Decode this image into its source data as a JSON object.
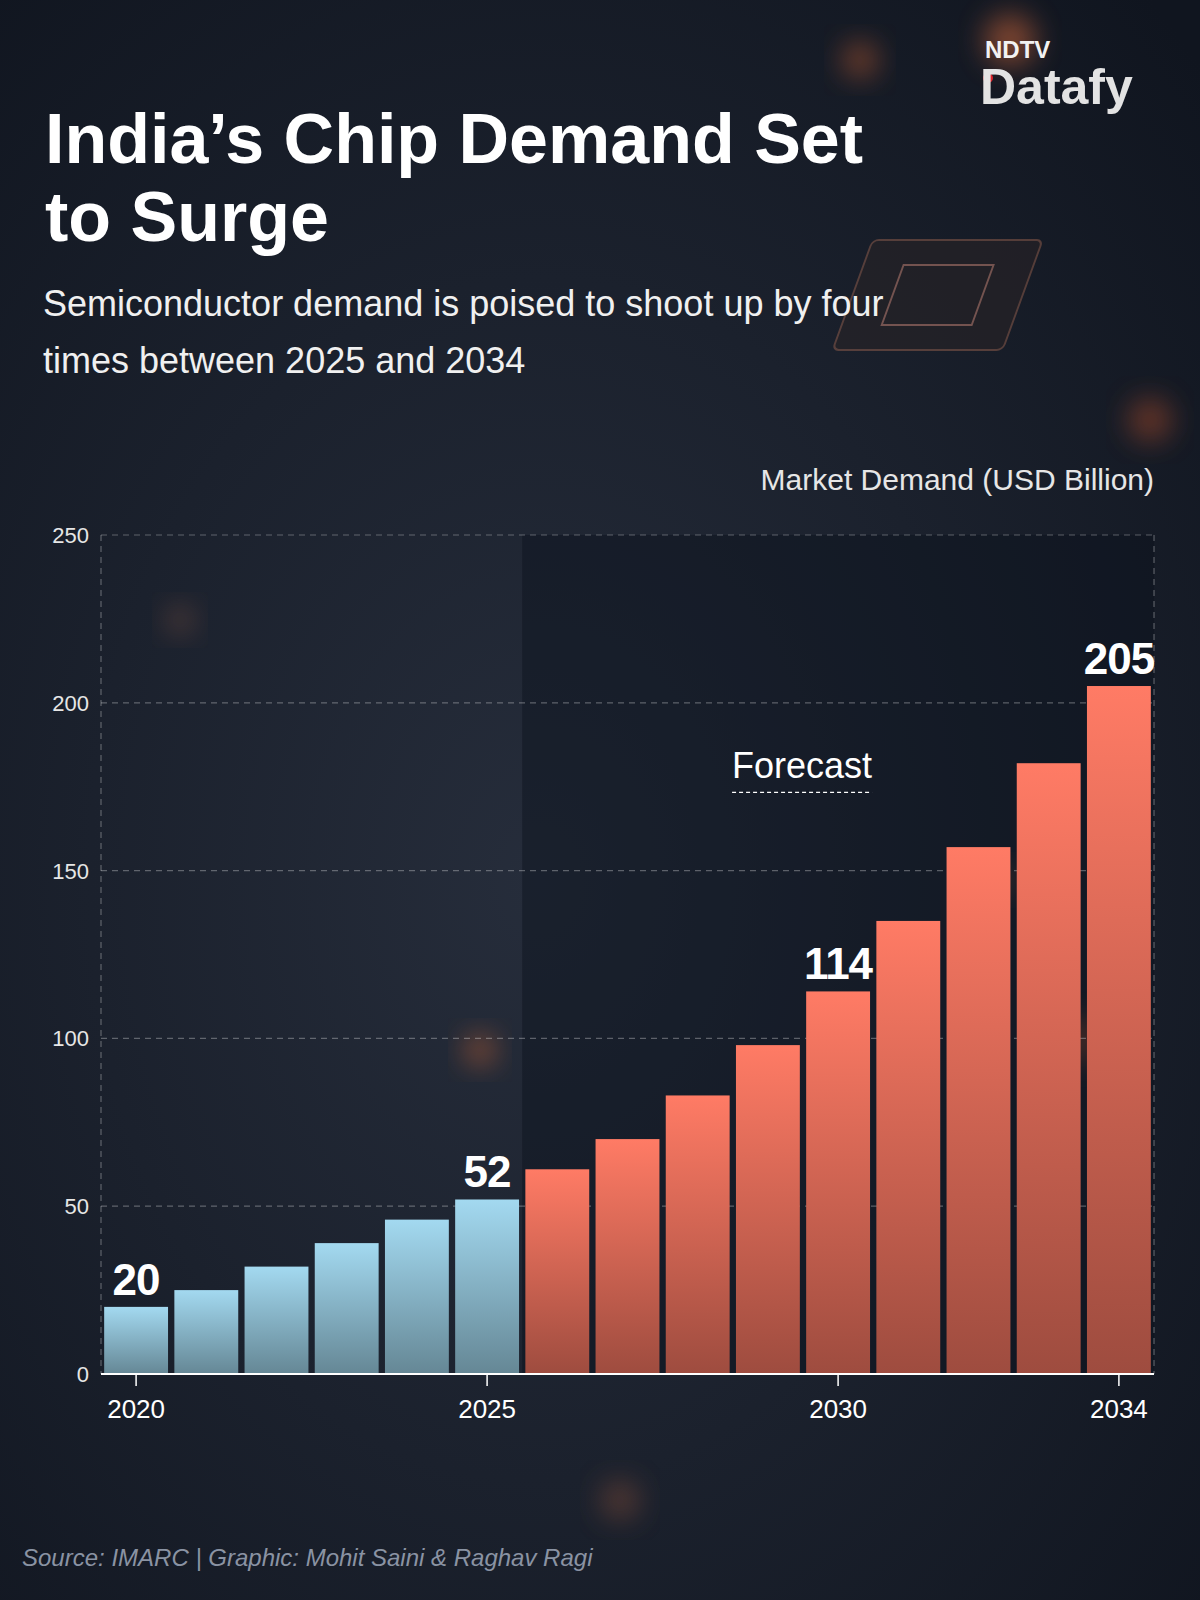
{
  "chart_data": {
    "type": "bar",
    "title": "India’s Chip Demand Set to Surge",
    "subtitle": "Semiconductor demand is poised to shoot up by four times between 2025 and 2034",
    "y_label": "Market Demand (USD Billion)",
    "categories": [
      "2020",
      null,
      null,
      null,
      null,
      "2025",
      null,
      null,
      null,
      null,
      "2030",
      null,
      null,
      null,
      "2034"
    ],
    "values": [
      20,
      25,
      32,
      39,
      46,
      52,
      61,
      70,
      83,
      98,
      114,
      135,
      157,
      182,
      205
    ],
    "value_labels": [
      "20",
      null,
      null,
      null,
      null,
      "52",
      null,
      null,
      null,
      null,
      "114",
      null,
      null,
      null,
      "205"
    ],
    "colors": [
      "#a3d9f0",
      "#a3d9f0",
      "#a3d9f0",
      "#a3d9f0",
      "#a3d9f0",
      "#a3d9f0",
      "#ff7b65",
      "#ff7b65",
      "#ff7b65",
      "#ff7b65",
      "#ff7b65",
      "#ff7b65",
      "#ff7b65",
      "#ff7b65",
      "#ff7b65"
    ],
    "data_labels": true,
    "ylim": [
      0,
      250
    ],
    "yticks": [
      0,
      50,
      100,
      150,
      200,
      250
    ],
    "grid": true,
    "annotations": [
      {
        "text": "Forecast"
      }
    ]
  },
  "source": "Source: IMARC | Graphic: Mohit Saini & Raghav Ragi",
  "brand": {
    "top": "NDTV",
    "name": "Datafy"
  }
}
